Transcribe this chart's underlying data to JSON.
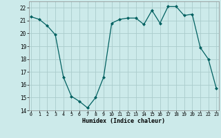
{
  "x": [
    0,
    1,
    2,
    3,
    4,
    5,
    6,
    7,
    8,
    9,
    10,
    11,
    12,
    13,
    14,
    15,
    16,
    17,
    18,
    19,
    20,
    21,
    22,
    23
  ],
  "y": [
    21.3,
    21.1,
    20.6,
    19.9,
    16.6,
    15.1,
    14.7,
    14.2,
    15.0,
    16.6,
    20.8,
    21.1,
    21.2,
    21.2,
    20.7,
    21.8,
    20.8,
    22.1,
    22.1,
    21.4,
    21.5,
    18.9,
    18.0,
    15.7
  ],
  "xlabel": "Humidex (Indice chaleur)",
  "ylabel": "",
  "title": "",
  "bg_color": "#cceaea",
  "grid_color": "#aacccc",
  "line_color": "#006060",
  "marker_color": "#006060",
  "ylim": [
    14,
    22.5
  ],
  "yticks": [
    14,
    15,
    16,
    17,
    18,
    19,
    20,
    21,
    22
  ],
  "xticks": [
    0,
    1,
    2,
    3,
    4,
    5,
    6,
    7,
    8,
    9,
    10,
    11,
    12,
    13,
    14,
    15,
    16,
    17,
    18,
    19,
    20,
    21,
    22,
    23
  ],
  "xlim": [
    -0.3,
    23.3
  ]
}
